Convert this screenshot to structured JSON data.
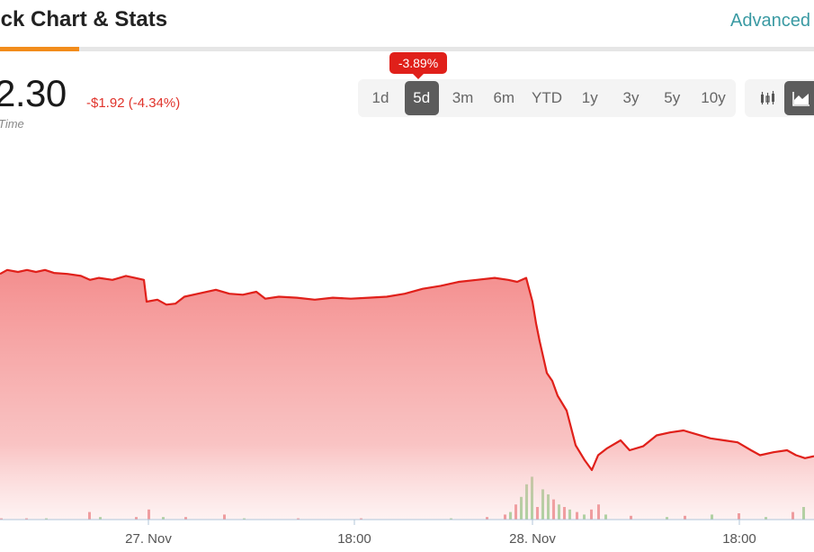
{
  "header": {
    "title": "ock Chart & Stats",
    "advanced_label": "Advanced"
  },
  "quote": {
    "price": "2.30",
    "change": "-$1.92 (-4.34%)",
    "sub_label": "Time"
  },
  "range_selector": {
    "tooltip": "-3.89%",
    "selected": "5d",
    "options": [
      "1d",
      "5d",
      "3m",
      "6m",
      "YTD",
      "1y",
      "3y",
      "5y",
      "10y"
    ]
  },
  "chart_type_selector": {
    "options": [
      "candlestick-icon",
      "area-chart-icon"
    ],
    "selected": "area-chart-icon"
  },
  "colors": {
    "line": "#e0201a",
    "fill_top": "#f48e8e",
    "volume_up": "#3aaa35",
    "volume_down": "#d9262c",
    "accent": "#f28c1b",
    "link": "#3a9aa3"
  },
  "chart_data": {
    "type": "area",
    "x_ticks": [
      "27. Nov",
      "18:00",
      "28. Nov",
      "18:00"
    ],
    "price": [
      [
        0,
        0.78
      ],
      [
        8,
        0.82
      ],
      [
        20,
        0.8
      ],
      [
        30,
        0.82
      ],
      [
        40,
        0.8
      ],
      [
        50,
        0.82
      ],
      [
        60,
        0.79
      ],
      [
        75,
        0.78
      ],
      [
        90,
        0.76
      ],
      [
        100,
        0.72
      ],
      [
        110,
        0.74
      ],
      [
        125,
        0.72
      ],
      [
        140,
        0.76
      ],
      [
        150,
        0.74
      ],
      [
        160,
        0.72
      ],
      [
        163,
        0.5
      ],
      [
        175,
        0.52
      ],
      [
        185,
        0.47
      ],
      [
        195,
        0.48
      ],
      [
        205,
        0.55
      ],
      [
        220,
        0.58
      ],
      [
        240,
        0.62
      ],
      [
        255,
        0.58
      ],
      [
        270,
        0.57
      ],
      [
        285,
        0.6
      ],
      [
        295,
        0.53
      ],
      [
        310,
        0.55
      ],
      [
        330,
        0.54
      ],
      [
        350,
        0.52
      ],
      [
        370,
        0.54
      ],
      [
        390,
        0.53
      ],
      [
        410,
        0.54
      ],
      [
        430,
        0.55
      ],
      [
        450,
        0.58
      ],
      [
        470,
        0.63
      ],
      [
        490,
        0.66
      ],
      [
        510,
        0.7
      ],
      [
        530,
        0.72
      ],
      [
        550,
        0.74
      ],
      [
        565,
        0.72
      ],
      [
        575,
        0.7
      ],
      [
        585,
        0.74
      ],
      [
        592,
        0.5
      ],
      [
        596,
        0.28
      ],
      [
        600,
        0.1
      ],
      [
        608,
        -0.22
      ],
      [
        614,
        -0.3
      ],
      [
        620,
        -0.45
      ],
      [
        630,
        -0.6
      ],
      [
        640,
        -0.95
      ],
      [
        650,
        -1.1
      ],
      [
        658,
        -1.2
      ],
      [
        665,
        -1.05
      ],
      [
        675,
        -0.98
      ],
      [
        690,
        -0.9
      ],
      [
        700,
        -1.0
      ],
      [
        715,
        -0.96
      ],
      [
        730,
        -0.85
      ],
      [
        745,
        -0.82
      ],
      [
        760,
        -0.8
      ],
      [
        775,
        -0.84
      ],
      [
        790,
        -0.88
      ],
      [
        805,
        -0.9
      ],
      [
        820,
        -0.92
      ],
      [
        835,
        -1.0
      ],
      [
        845,
        -1.05
      ],
      [
        860,
        -1.02
      ],
      [
        875,
        -1.0
      ],
      [
        885,
        -1.05
      ],
      [
        895,
        -1.08
      ],
      [
        905,
        -1.06
      ]
    ],
    "volume": [
      {
        "x": 0,
        "v": 1,
        "up": false
      },
      {
        "x": 28,
        "v": 1,
        "up": false
      },
      {
        "x": 50,
        "v": 1,
        "up": true
      },
      {
        "x": 98,
        "v": 6,
        "up": false
      },
      {
        "x": 110,
        "v": 2,
        "up": true
      },
      {
        "x": 150,
        "v": 2,
        "up": false
      },
      {
        "x": 164,
        "v": 8,
        "up": false
      },
      {
        "x": 180,
        "v": 2,
        "up": true
      },
      {
        "x": 205,
        "v": 2,
        "up": false
      },
      {
        "x": 248,
        "v": 4,
        "up": false
      },
      {
        "x": 270,
        "v": 1,
        "up": true
      },
      {
        "x": 330,
        "v": 1,
        "up": false
      },
      {
        "x": 400,
        "v": 1,
        "up": false
      },
      {
        "x": 500,
        "v": 1,
        "up": true
      },
      {
        "x": 540,
        "v": 2,
        "up": false
      },
      {
        "x": 560,
        "v": 4,
        "up": false
      },
      {
        "x": 566,
        "v": 6,
        "up": true
      },
      {
        "x": 572,
        "v": 12,
        "up": false
      },
      {
        "x": 578,
        "v": 18,
        "up": true
      },
      {
        "x": 584,
        "v": 28,
        "up": true
      },
      {
        "x": 590,
        "v": 34,
        "up": true
      },
      {
        "x": 596,
        "v": 10,
        "up": false
      },
      {
        "x": 602,
        "v": 24,
        "up": true
      },
      {
        "x": 608,
        "v": 20,
        "up": true
      },
      {
        "x": 614,
        "v": 16,
        "up": false
      },
      {
        "x": 620,
        "v": 12,
        "up": true
      },
      {
        "x": 626,
        "v": 10,
        "up": false
      },
      {
        "x": 632,
        "v": 8,
        "up": true
      },
      {
        "x": 640,
        "v": 6,
        "up": false
      },
      {
        "x": 648,
        "v": 4,
        "up": true
      },
      {
        "x": 656,
        "v": 8,
        "up": false
      },
      {
        "x": 664,
        "v": 12,
        "up": false
      },
      {
        "x": 672,
        "v": 4,
        "up": true
      },
      {
        "x": 700,
        "v": 3,
        "up": false
      },
      {
        "x": 740,
        "v": 2,
        "up": true
      },
      {
        "x": 760,
        "v": 3,
        "up": false
      },
      {
        "x": 790,
        "v": 4,
        "up": true
      },
      {
        "x": 820,
        "v": 5,
        "up": false
      },
      {
        "x": 850,
        "v": 2,
        "up": true
      },
      {
        "x": 880,
        "v": 6,
        "up": false
      },
      {
        "x": 892,
        "v": 10,
        "up": true
      }
    ]
  }
}
